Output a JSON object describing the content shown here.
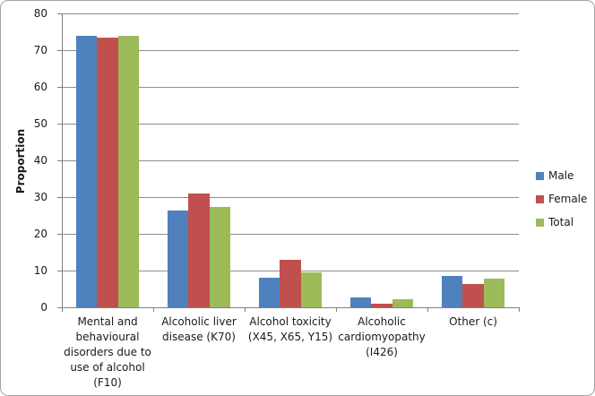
{
  "window": {
    "background": "#ffffff",
    "border_color": "#a3a3a3"
  },
  "chart_data": {
    "type": "bar",
    "title": "",
    "xlabel": "",
    "ylabel": "Proportion",
    "ylim": [
      0,
      80
    ],
    "yticks": [
      0,
      10,
      20,
      30,
      40,
      50,
      60,
      70,
      80
    ],
    "grid": true,
    "legend_position": "right",
    "categories": [
      "Mental and behavioural disorders due to use of alcohol (F10)",
      "Alcoholic liver disease (K70)",
      "Alcohol toxicity (X45, X65, Y15)",
      "Alcoholic cardiomyopathy (I426)",
      "Other (c)"
    ],
    "series": [
      {
        "name": "Male",
        "color": "#4F81BD",
        "values": [
          74.0,
          26.3,
          8.0,
          2.6,
          8.5
        ]
      },
      {
        "name": "Female",
        "color": "#C0504D",
        "values": [
          73.5,
          30.9,
          12.9,
          1.0,
          6.4
        ]
      },
      {
        "name": "Total",
        "color": "#9BBB59",
        "values": [
          73.8,
          27.2,
          9.4,
          2.2,
          7.9
        ]
      }
    ],
    "colors": {
      "gridline": "#8e8e8e",
      "axis": "#7f7f7f",
      "text": "#1a1a1a"
    }
  }
}
